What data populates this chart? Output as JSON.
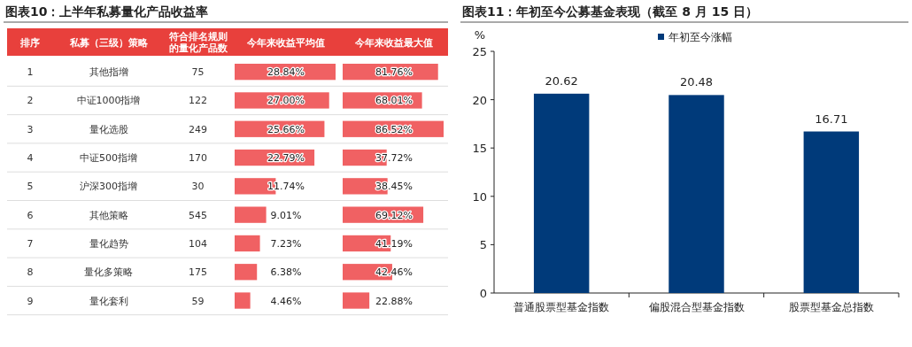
{
  "chart_data": [
    {
      "type": "bar",
      "orientation": "horizontal",
      "title": "图表10：上半年私募量化产品收益率",
      "categories": [
        "其他指增",
        "中证1000指增",
        "量化选股",
        "中证500指增",
        "沪深300指增",
        "其他策略",
        "量化趋势",
        "量化多策略",
        "量化套利"
      ],
      "series": [
        {
          "name": "今年来收益平均值",
          "color": "#f06163",
          "values": [
            28.84,
            27.0,
            25.66,
            22.79,
            11.74,
            9.01,
            7.23,
            6.38,
            4.46
          ],
          "value_labels": [
            "28.84%",
            "27.00%",
            "25.66%",
            "22.79%",
            "11.74%",
            "9.01%",
            "7.23%",
            "6.38%",
            "4.46%"
          ]
        }
      ],
      "annotations": [
        "排序",
        "私募（三级）策略",
        "符合排名规则的量化产品数",
        "1",
        "2",
        "3",
        "4",
        "5",
        "6",
        "7",
        "8",
        "9",
        "75",
        "122",
        "249",
        "170",
        "30",
        "545",
        "104",
        "175",
        "59"
      ]
    },
    {
      "type": "bar",
      "orientation": "horizontal",
      "series": [
        {
          "name": "今年来收益最大值",
          "color": "#f06163",
          "values": [
            81.76,
            68.01,
            86.52,
            37.72,
            38.45,
            69.12,
            41.19,
            42.46,
            22.88
          ],
          "value_labels": [
            "81.76%",
            "68.01%",
            "86.52%",
            "37.72%",
            "38.45%",
            "69.12%",
            "41.19%",
            "42.46%",
            "22.88%"
          ]
        }
      ]
    },
    {
      "type": "bar",
      "title": "图表11：年初至今公募基金表现（截至 8 月 15 日）",
      "ylabel": "%",
      "categories": [
        "普通股票型基金指数",
        "偏股混合型基金指数",
        "股票型基金总指数"
      ],
      "series": [
        {
          "name": "年初至今涨幅",
          "color": "#003a7a",
          "values": [
            20.62,
            20.48,
            16.71
          ]
        }
      ],
      "ylim": [
        0,
        25
      ],
      "yticks": [
        0,
        5,
        10,
        15,
        20,
        25
      ],
      "data_labels": true,
      "legend": "top left",
      "grid": false
    }
  ]
}
